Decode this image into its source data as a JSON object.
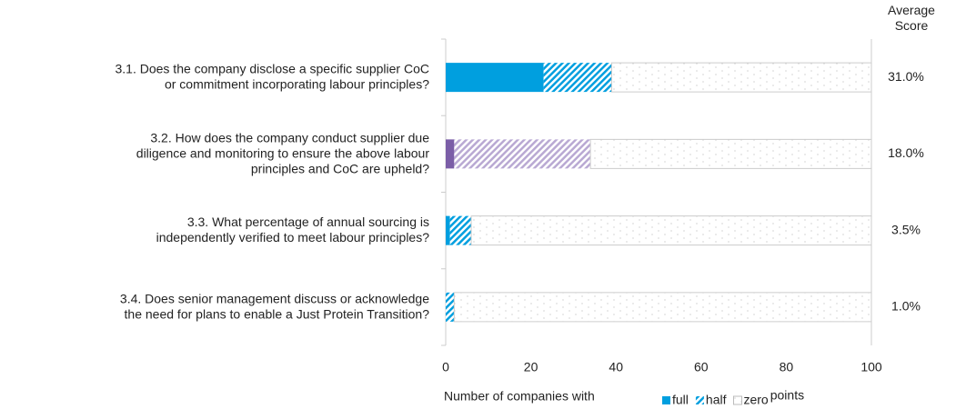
{
  "chart_data": {
    "type": "stacked_barh",
    "categories": [
      [
        "3.1. Does the company disclose a specific supplier CoC",
        "or commitment incorporating labour principles?"
      ],
      [
        "3.2. How does the company conduct supplier due",
        "diligence and monitoring to ensure the above labour",
        "principles and CoC are upheld?"
      ],
      [
        "3.3. What percentage of annual sourcing is",
        "independently verified to meet labour principles?"
      ],
      [
        "3.4. Does senior management discuss or acknowledge",
        "the need for plans to enable a Just Protein Transition?"
      ]
    ],
    "series": [
      {
        "name": "full",
        "color": "#009fdf",
        "colors": [
          "#009fdf",
          "#7b5ea7",
          "#009fdf",
          "#009fdf"
        ],
        "pattern": "solid",
        "values": [
          23,
          2,
          1,
          0
        ]
      },
      {
        "name": "half",
        "color": "#009fdf",
        "colors": [
          "#009fdf",
          "#b9a9d3",
          "#009fdf",
          "#009fdf"
        ],
        "pattern": "hatch",
        "values": [
          16,
          32,
          5,
          2
        ]
      },
      {
        "name": "zero",
        "color": "#bbbbbb",
        "colors": [
          "#bbbbbb",
          "#bbbbbb",
          "#bbbbbb",
          "#bbbbbb"
        ],
        "pattern": "dots",
        "values": [
          61,
          66,
          94,
          98
        ]
      }
    ],
    "xlabel": "Number of companies with",
    "legend_suffix": "points",
    "legend": "bottom",
    "xlim": [
      0,
      100
    ],
    "xticks": [
      0,
      20,
      40,
      60,
      80,
      100
    ],
    "average_score": {
      "title": [
        "Average",
        "Score"
      ],
      "values": [
        31,
        18,
        3.5,
        1
      ],
      "value_labels": [
        "31.0%",
        "18.0%",
        "3.5%",
        "1.0%"
      ]
    }
  }
}
